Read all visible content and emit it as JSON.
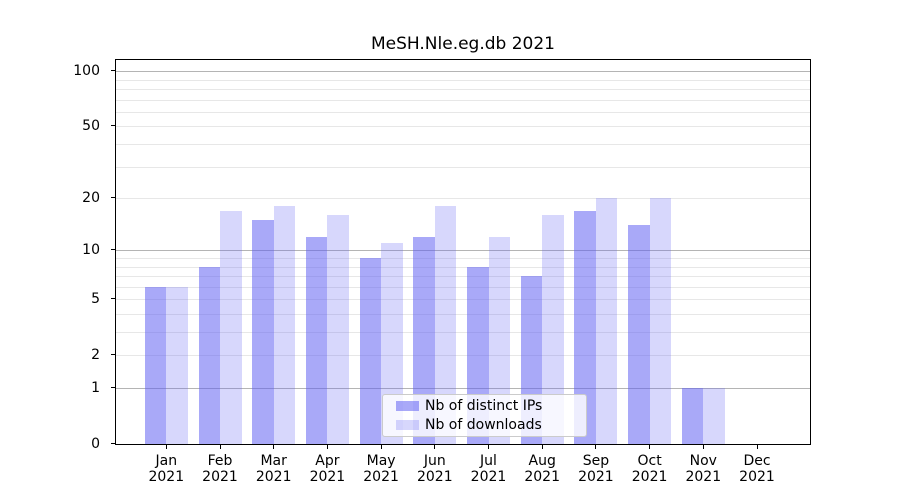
{
  "window": {
    "title": "MeSH.Nle.eg.db 2021"
  },
  "chart_data": {
    "type": "bar",
    "title": "MeSH.Nle.eg.db 2021",
    "months": [
      "Jan",
      "Feb",
      "Mar",
      "Apr",
      "May",
      "Jun",
      "Jul",
      "Aug",
      "Sep",
      "Oct",
      "Nov",
      "Dec"
    ],
    "year": "2021",
    "categories": [
      "Jan 2021",
      "Feb 2021",
      "Mar 2021",
      "Apr 2021",
      "May 2021",
      "Jun 2021",
      "Jul 2021",
      "Aug 2021",
      "Sep 2021",
      "Oct 2021",
      "Nov 2021",
      "Dec 2021"
    ],
    "series": [
      {
        "name": "Nb of distinct IPs",
        "color": "rgba(97,97,242,0.54)",
        "values": [
          6,
          8,
          15,
          12,
          9,
          12,
          8,
          7,
          17,
          14,
          1,
          0
        ]
      },
      {
        "name": "Nb of downloads",
        "color": "rgba(97,97,242,0.25)",
        "values": [
          6,
          17,
          18,
          16,
          11,
          18,
          12,
          16,
          20,
          20,
          1,
          0
        ]
      }
    ],
    "xlabel": "",
    "ylabel": "",
    "yscale": "log1p",
    "ylim": [
      0,
      115
    ],
    "yticks": [
      0,
      1,
      2,
      5,
      10,
      20,
      50,
      100
    ],
    "gridlines": {
      "major": [
        1,
        10,
        100
      ],
      "minor": [
        2,
        3,
        4,
        5,
        6,
        7,
        8,
        9,
        20,
        30,
        40,
        50,
        60,
        70,
        80,
        90
      ]
    },
    "grid": true,
    "legend_position": "lower center"
  },
  "colors": {
    "bar_base": "#6161f2",
    "grid_major": "#b4b4b4",
    "grid_minor": "#e7e7e7",
    "axis": "#000000",
    "legend_border": "#cbcbcb"
  }
}
